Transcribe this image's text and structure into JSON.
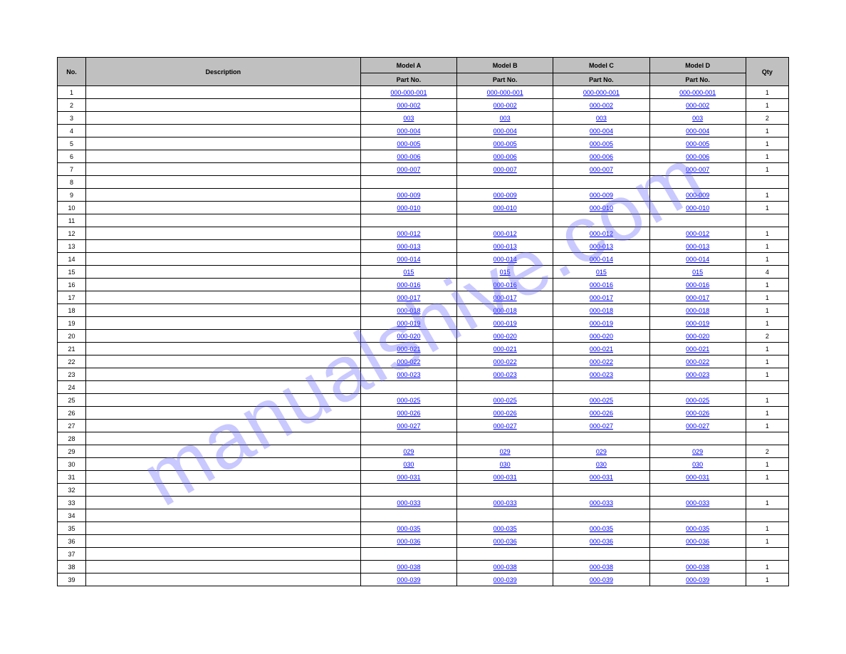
{
  "watermark": "manualshive.com",
  "colors": {
    "header_bg": "#c0c0c0",
    "border": "#000000",
    "link": "#0000ff",
    "background": "#ffffff",
    "watermark": "rgba(100,100,255,0.35)"
  },
  "header": {
    "row1": [
      "",
      "",
      "Model A",
      "Model B",
      "Model C",
      "Model D",
      ""
    ],
    "row2": [
      "No.",
      "Description",
      "Part No.",
      "Part No.",
      "Part No.",
      "Part No.",
      "Qty"
    ]
  },
  "rows": [
    {
      "num": "1",
      "desc": "",
      "links": [
        "000-000-001",
        "000-000-001",
        "000-000-001",
        "000-000-001"
      ],
      "qty": "1"
    },
    {
      "num": "2",
      "desc": "",
      "links": [
        "000-002",
        "000-002",
        "000-002",
        "000-002"
      ],
      "qty": "1"
    },
    {
      "num": "3",
      "desc": "",
      "links": [
        "003",
        "003",
        "003",
        "003"
      ],
      "qty": "2"
    },
    {
      "num": "4",
      "desc": "",
      "links": [
        "000-004",
        "000-004",
        "000-004",
        "000-004"
      ],
      "qty": "1"
    },
    {
      "num": "5",
      "desc": "",
      "links": [
        "000-005",
        "000-005",
        "000-005",
        "000-005"
      ],
      "qty": "1"
    },
    {
      "num": "6",
      "desc": "",
      "links": [
        "000-006",
        "000-006",
        "000-006",
        "000-006"
      ],
      "qty": "1"
    },
    {
      "num": "7",
      "desc": "",
      "links": [
        "000-007",
        "000-007",
        "000-007",
        "000-007"
      ],
      "qty": "1"
    },
    {
      "num": "8",
      "desc": "",
      "links": [
        "",
        "",
        "",
        ""
      ],
      "qty": ""
    },
    {
      "num": "9",
      "desc": "",
      "links": [
        "000-009",
        "000-009",
        "000-009",
        "000-009"
      ],
      "qty": "1"
    },
    {
      "num": "10",
      "desc": "",
      "links": [
        "000-010",
        "000-010",
        "000-010",
        "000-010"
      ],
      "qty": "1"
    },
    {
      "num": "11",
      "desc": "",
      "links": [
        "",
        "",
        "",
        ""
      ],
      "qty": ""
    },
    {
      "num": "12",
      "desc": "",
      "links": [
        "000-012",
        "000-012",
        "000-012",
        "000-012"
      ],
      "qty": "1"
    },
    {
      "num": "13",
      "desc": "",
      "links": [
        "000-013",
        "000-013",
        "000-013",
        "000-013"
      ],
      "qty": "1"
    },
    {
      "num": "14",
      "desc": "",
      "links": [
        "000-014",
        "000-014",
        "000-014",
        "000-014"
      ],
      "qty": "1"
    },
    {
      "num": "15",
      "desc": "",
      "links": [
        "015",
        "015",
        "015",
        "015"
      ],
      "qty": "4"
    },
    {
      "num": "16",
      "desc": "",
      "links": [
        "000-016",
        "000-016",
        "000-016",
        "000-016"
      ],
      "qty": "1"
    },
    {
      "num": "17",
      "desc": "",
      "links": [
        "000-017",
        "000-017",
        "000-017",
        "000-017"
      ],
      "qty": "1"
    },
    {
      "num": "18",
      "desc": "",
      "links": [
        "000-018",
        "000-018",
        "000-018",
        "000-018"
      ],
      "qty": "1"
    },
    {
      "num": "19",
      "desc": "",
      "links": [
        "000-019",
        "000-019",
        "000-019",
        "000-019"
      ],
      "qty": "1"
    },
    {
      "num": "20",
      "desc": "",
      "links": [
        "000-020",
        "000-020",
        "000-020",
        "000-020"
      ],
      "qty": "2"
    },
    {
      "num": "21",
      "desc": "",
      "links": [
        "000-021",
        "000-021",
        "000-021",
        "000-021"
      ],
      "qty": "1"
    },
    {
      "num": "22",
      "desc": "",
      "links": [
        "000-022",
        "000-022",
        "000-022",
        "000-022"
      ],
      "qty": "1"
    },
    {
      "num": "23",
      "desc": "",
      "links": [
        "000-023",
        "000-023",
        "000-023",
        "000-023"
      ],
      "qty": "1"
    },
    {
      "num": "24",
      "desc": "",
      "links": [
        "",
        "",
        "",
        ""
      ],
      "qty": ""
    },
    {
      "num": "25",
      "desc": "",
      "links": [
        "000-025",
        "000-025",
        "000-025",
        "000-025"
      ],
      "qty": "1"
    },
    {
      "num": "26",
      "desc": "",
      "links": [
        "000-026",
        "000-026",
        "000-026",
        "000-026"
      ],
      "qty": "1"
    },
    {
      "num": "27",
      "desc": "",
      "links": [
        "000-027",
        "000-027",
        "000-027",
        "000-027"
      ],
      "qty": "1"
    },
    {
      "num": "28",
      "desc": "",
      "links": [
        "",
        "",
        "",
        ""
      ],
      "qty": ""
    },
    {
      "num": "29",
      "desc": "",
      "links": [
        "029",
        "029",
        "029",
        "029"
      ],
      "qty": "2"
    },
    {
      "num": "30",
      "desc": "",
      "links": [
        "030",
        "030",
        "030",
        "030"
      ],
      "qty": "1"
    },
    {
      "num": "31",
      "desc": "",
      "links": [
        "000-031",
        "000-031",
        "000-031",
        "000-031"
      ],
      "qty": "1"
    },
    {
      "num": "32",
      "desc": "",
      "links": [
        "",
        "",
        "",
        ""
      ],
      "qty": ""
    },
    {
      "num": "33",
      "desc": "",
      "links": [
        "000-033",
        "000-033",
        "000-033",
        "000-033"
      ],
      "qty": "1"
    },
    {
      "num": "34",
      "desc": "",
      "links": [
        "",
        "",
        "",
        ""
      ],
      "qty": ""
    },
    {
      "num": "35",
      "desc": "",
      "links": [
        "000-035",
        "000-035",
        "000-035",
        "000-035"
      ],
      "qty": "1"
    },
    {
      "num": "36",
      "desc": "",
      "links": [
        "000-036",
        "000-036",
        "000-036",
        "000-036"
      ],
      "qty": "1"
    },
    {
      "num": "37",
      "desc": "",
      "links": [
        "",
        "",
        "",
        ""
      ],
      "qty": ""
    },
    {
      "num": "38",
      "desc": "",
      "links": [
        "000-038",
        "000-038",
        "000-038",
        "000-038"
      ],
      "qty": "1"
    },
    {
      "num": "39",
      "desc": "",
      "links": [
        "000-039",
        "000-039",
        "000-039",
        "000-039"
      ],
      "qty": "1"
    }
  ]
}
